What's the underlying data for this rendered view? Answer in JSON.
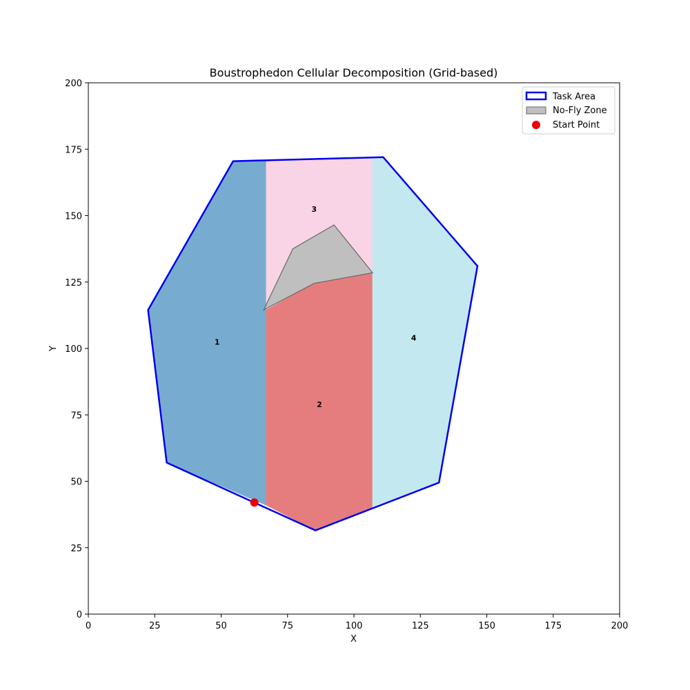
{
  "chart_data": {
    "type": "scatter",
    "title": "Boustrophedon Cellular Decomposition (Grid-based)",
    "xlabel": "X",
    "ylabel": "Y",
    "xlim": [
      0,
      200
    ],
    "ylim": [
      0,
      200
    ],
    "xticks": [
      0,
      25,
      50,
      75,
      100,
      125,
      150,
      175,
      200
    ],
    "yticks": [
      0,
      25,
      50,
      75,
      100,
      125,
      150,
      175,
      200
    ],
    "grid": false,
    "legend_position": "top-right",
    "task_area": {
      "name": "Task Area",
      "color": "#0000ee",
      "vertices": [
        [
          54.5,
          170.5
        ],
        [
          111,
          172
        ],
        [
          146.5,
          131
        ],
        [
          132,
          49.5
        ],
        [
          85.5,
          31.5
        ],
        [
          29.5,
          57
        ],
        [
          22.5,
          114.5
        ]
      ]
    },
    "no_fly_zone": {
      "name": "No-Fly Zone",
      "color": "#bfbfbf",
      "edge_color": "#666666",
      "vertices": [
        [
          66,
          114.5
        ],
        [
          77,
          137.5
        ],
        [
          92.5,
          146.5
        ],
        [
          107,
          128.5
        ],
        [
          85,
          124.5
        ]
      ]
    },
    "start_point": {
      "name": "Start Point",
      "color": "#ee0000",
      "x": 62.5,
      "y": 42
    },
    "cells": [
      {
        "label": "1",
        "color": "#77acd0",
        "label_x": 48.5,
        "label_y": 102.5,
        "vertices": [
          [
            54.5,
            170.5
          ],
          [
            67,
            170.5
          ],
          [
            67,
            41
          ],
          [
            29.5,
            57
          ],
          [
            22.5,
            114.5
          ]
        ]
      },
      {
        "label": "2",
        "color": "#e57d7f",
        "label_x": 87,
        "label_y": 79,
        "vertices": [
          [
            67,
            114.5
          ],
          [
            85,
            124.5
          ],
          [
            107,
            128.5
          ],
          [
            107,
            40
          ],
          [
            85.5,
            31.5
          ],
          [
            67,
            41
          ]
        ]
      },
      {
        "label": "3",
        "color": "#f9d4e6",
        "label_x": 85,
        "label_y": 152.5,
        "vertices": [
          [
            67,
            171
          ],
          [
            107,
            172
          ],
          [
            107,
            128.5
          ],
          [
            92.5,
            146.5
          ],
          [
            77,
            137.5
          ],
          [
            67,
            116
          ]
        ]
      },
      {
        "label": "4",
        "color": "#c4e8ef",
        "label_x": 122.5,
        "label_y": 104,
        "vertices": [
          [
            107,
            172
          ],
          [
            111,
            172
          ],
          [
            146.5,
            131
          ],
          [
            132,
            49.5
          ],
          [
            107,
            40
          ]
        ]
      }
    ]
  }
}
